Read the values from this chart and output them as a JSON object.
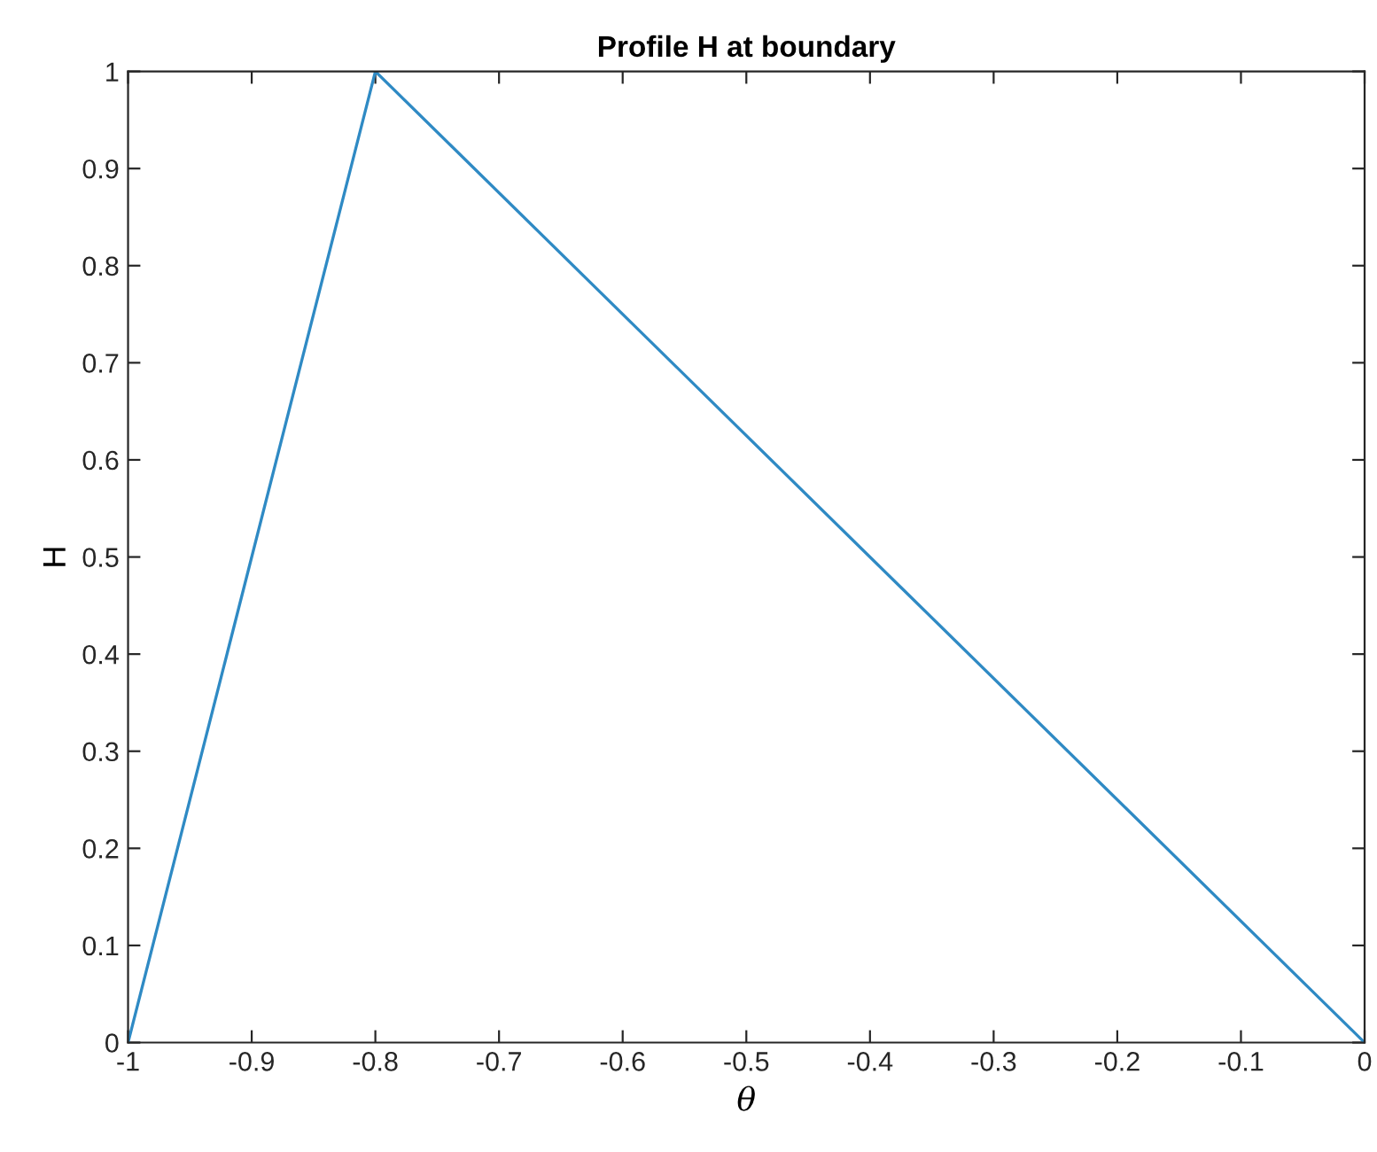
{
  "chart_data": {
    "type": "line",
    "title": "Profile H at boundary",
    "xlabel": "θ",
    "ylabel": "H",
    "x": [
      -1,
      -0.8,
      0
    ],
    "series": [
      {
        "color": "#2f8ac4",
        "values": [
          0,
          1,
          0
        ]
      }
    ],
    "xlim": [
      -1,
      0
    ],
    "ylim": [
      0,
      1
    ],
    "xticks": [
      -1,
      -0.9,
      -0.8,
      -0.7,
      -0.6,
      -0.5,
      -0.4,
      -0.3,
      -0.2,
      -0.1,
      0
    ],
    "yticks": [
      0,
      0.1,
      0.2,
      0.3,
      0.4,
      0.5,
      0.6,
      0.7,
      0.8,
      0.9,
      1
    ],
    "grid": false,
    "marker": "none",
    "line_style": "solid"
  }
}
